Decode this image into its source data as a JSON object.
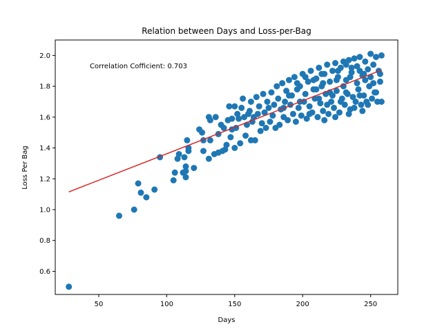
{
  "chart_data": {
    "type": "scatter",
    "title": "Relation between Days and Loss-per-Bag",
    "xlabel": "Days",
    "ylabel": "Loss Per Bag",
    "xlim": [
      18,
      270
    ],
    "ylim": [
      0.45,
      2.1
    ],
    "xticks": [
      50,
      100,
      150,
      200,
      250
    ],
    "yticks": [
      0.6,
      0.8,
      1.0,
      1.2,
      1.4,
      1.6,
      1.8,
      2.0
    ],
    "annotation": "Correlation Cofficient: 0.703",
    "grid": false,
    "legend": "none",
    "point_color": "#1f77b4",
    "fit_color": "#d62728",
    "fit_line": {
      "x": [
        28,
        258
      ],
      "y": [
        1.115,
        1.905
      ]
    },
    "series": [
      {
        "points": [
          [
            28,
            0.5
          ],
          [
            65,
            0.96
          ],
          [
            76,
            1.0
          ],
          [
            79,
            1.17
          ],
          [
            81,
            1.11
          ],
          [
            85,
            1.08
          ],
          [
            91,
            1.13
          ],
          [
            95,
            1.34
          ],
          [
            105,
            1.19
          ],
          [
            106,
            1.24
          ],
          [
            108,
            1.33
          ],
          [
            109,
            1.36
          ],
          [
            112,
            1.24
          ],
          [
            113,
            1.34
          ],
          [
            114,
            1.28
          ],
          [
            114,
            1.25
          ],
          [
            114,
            1.21
          ],
          [
            115,
            1.45
          ],
          [
            116,
            1.4
          ],
          [
            116,
            1.38
          ],
          [
            120,
            1.27
          ],
          [
            124,
            1.52
          ],
          [
            126,
            1.5
          ],
          [
            127,
            1.38
          ],
          [
            127,
            1.45
          ],
          [
            131,
            1.6
          ],
          [
            131,
            1.33
          ],
          [
            132,
            1.58
          ],
          [
            132,
            1.45
          ],
          [
            135,
            1.36
          ],
          [
            136,
            1.6
          ],
          [
            138,
            1.49
          ],
          [
            138,
            1.37
          ],
          [
            140,
            1.55
          ],
          [
            141,
            1.38
          ],
          [
            142,
            1.53
          ],
          [
            143,
            1.39
          ],
          [
            144,
            1.42
          ],
          [
            145,
            1.58
          ],
          [
            146,
            1.67
          ],
          [
            147,
            1.47
          ],
          [
            148,
            1.52
          ],
          [
            148,
            1.59
          ],
          [
            150,
            1.4
          ],
          [
            150,
            1.67
          ],
          [
            151,
            1.53
          ],
          [
            152,
            1.62
          ],
          [
            153,
            1.59
          ],
          [
            154,
            1.43
          ],
          [
            155,
            1.66
          ],
          [
            156,
            1.72
          ],
          [
            157,
            1.6
          ],
          [
            158,
            1.48
          ],
          [
            159,
            1.55
          ],
          [
            160,
            1.62
          ],
          [
            161,
            1.64
          ],
          [
            162,
            1.45
          ],
          [
            162,
            1.7
          ],
          [
            163,
            1.57
          ],
          [
            164,
            1.6
          ],
          [
            165,
            1.45
          ],
          [
            166,
            1.73
          ],
          [
            167,
            1.62
          ],
          [
            168,
            1.67
          ],
          [
            169,
            1.51
          ],
          [
            170,
            1.56
          ],
          [
            171,
            1.75
          ],
          [
            172,
            1.63
          ],
          [
            173,
            1.53
          ],
          [
            174,
            1.7
          ],
          [
            175,
            1.66
          ],
          [
            176,
            1.57
          ],
          [
            177,
            1.76
          ],
          [
            178,
            1.61
          ],
          [
            179,
            1.68
          ],
          [
            180,
            1.53
          ],
          [
            181,
            1.8
          ],
          [
            182,
            1.72
          ],
          [
            183,
            1.55
          ],
          [
            184,
            1.65
          ],
          [
            185,
            1.82
          ],
          [
            186,
            1.6
          ],
          [
            187,
            1.7
          ],
          [
            188,
            1.77
          ],
          [
            189,
            1.58
          ],
          [
            190,
            1.84
          ],
          [
            191,
            1.68
          ],
          [
            192,
            1.74
          ],
          [
            193,
            1.62
          ],
          [
            194,
            1.86
          ],
          [
            195,
            1.57
          ],
          [
            196,
            1.78
          ],
          [
            197,
            1.66
          ],
          [
            198,
            1.8
          ],
          [
            199,
            1.61
          ],
          [
            200,
            1.88
          ],
          [
            201,
            1.7
          ],
          [
            202,
            1.75
          ],
          [
            203,
            1.59
          ],
          [
            204,
            1.83
          ],
          [
            205,
            1.67
          ],
          [
            206,
            1.9
          ],
          [
            207,
            1.63
          ],
          [
            208,
            1.78
          ],
          [
            209,
            1.72
          ],
          [
            210,
            1.85
          ],
          [
            211,
            1.6
          ],
          [
            212,
            1.92
          ],
          [
            213,
            1.69
          ],
          [
            214,
            1.8
          ],
          [
            215,
            1.64
          ],
          [
            216,
            1.88
          ],
          [
            217,
            1.75
          ],
          [
            218,
            1.94
          ],
          [
            219,
            1.62
          ],
          [
            220,
            1.83
          ],
          [
            221,
            1.7
          ],
          [
            222,
            1.9
          ],
          [
            223,
            1.66
          ],
          [
            224,
            1.95
          ],
          [
            225,
            1.77
          ],
          [
            226,
            1.86
          ],
          [
            227,
            1.63
          ],
          [
            228,
            1.92
          ],
          [
            229,
            1.72
          ],
          [
            230,
            1.96
          ],
          [
            231,
            1.68
          ],
          [
            232,
            1.84
          ],
          [
            233,
            1.75
          ],
          [
            234,
            1.97
          ],
          [
            235,
            1.65
          ],
          [
            236,
            1.89
          ],
          [
            237,
            1.73
          ],
          [
            238,
            1.98
          ],
          [
            239,
            1.7
          ],
          [
            240,
            1.93
          ],
          [
            241,
            1.78
          ],
          [
            242,
            1.99
          ],
          [
            243,
            1.68
          ],
          [
            244,
            1.87
          ],
          [
            245,
            1.74
          ],
          [
            246,
            1.96
          ],
          [
            247,
            1.7
          ],
          [
            248,
            1.91
          ],
          [
            249,
            1.8
          ],
          [
            250,
            2.01
          ],
          [
            251,
            1.72
          ],
          [
            252,
            1.94
          ],
          [
            253,
            1.76
          ],
          [
            254,
            1.99
          ],
          [
            255,
            1.7
          ],
          [
            256,
            1.9
          ],
          [
            257,
            1.83
          ],
          [
            258,
            2.0
          ],
          [
            258,
            1.7
          ],
          [
            257,
            1.88
          ],
          [
            210,
            1.78
          ],
          [
            215,
            1.82
          ],
          [
            220,
            1.76
          ],
          [
            225,
            1.84
          ],
          [
            230,
            1.8
          ],
          [
            235,
            1.86
          ],
          [
            240,
            1.82
          ],
          [
            245,
            1.88
          ],
          [
            212,
            1.72
          ],
          [
            222,
            1.74
          ],
          [
            232,
            1.76
          ],
          [
            242,
            1.74
          ],
          [
            205,
            1.62
          ],
          [
            218,
            1.68
          ],
          [
            228,
            1.7
          ],
          [
            238,
            1.66
          ],
          [
            248,
            1.68
          ],
          [
            198,
            1.7
          ],
          [
            208,
            1.84
          ],
          [
            226,
            1.9
          ],
          [
            236,
            1.92
          ],
          [
            246,
            1.84
          ],
          [
            252,
            1.82
          ],
          [
            216,
            1.58
          ],
          [
            224,
            1.6
          ],
          [
            234,
            1.62
          ],
          [
            244,
            1.64
          ],
          [
            190,
            1.74
          ],
          [
            186,
            1.66
          ],
          [
            196,
            1.82
          ],
          [
            202,
            1.86
          ],
          [
            214,
            1.88
          ],
          [
            232,
            1.94
          ],
          [
            242,
            1.9
          ],
          [
            250,
            1.86
          ],
          [
            254,
            1.76
          ]
        ]
      }
    ]
  }
}
